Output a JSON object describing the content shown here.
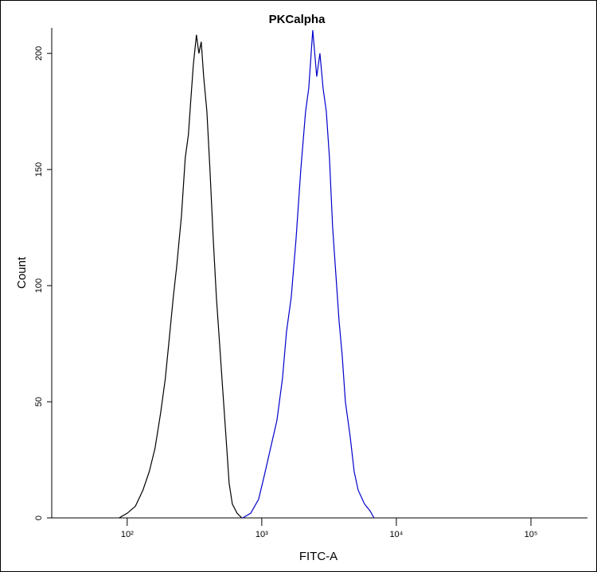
{
  "chart_data": {
    "type": "line",
    "title": "PKCalpha",
    "xlabel": "FITC-A",
    "ylabel": "Count",
    "xscale": "log",
    "xlim": [
      27.5,
      263000
    ],
    "ylim": [
      0,
      211
    ],
    "xticks": [
      {
        "value": 100,
        "label": "10²"
      },
      {
        "value": 1000,
        "label": "10³"
      },
      {
        "value": 10000,
        "label": "10⁴"
      },
      {
        "value": 100000,
        "label": "10⁵"
      }
    ],
    "yticks": [
      0,
      50,
      100,
      150,
      200
    ],
    "series": [
      {
        "color": "#000000",
        "x": [
          87,
          100,
          115,
          131,
          146,
          161,
          177,
          192,
          206,
          220,
          233,
          253,
          270,
          285,
          297,
          310,
          327,
          341,
          355,
          370,
          391,
          412,
          436,
          460,
          486,
          513,
          542,
          572,
          604,
          656,
          711
        ],
        "values": [
          0,
          2,
          5,
          12,
          20,
          30,
          45,
          60,
          78,
          95,
          108,
          130,
          155,
          165,
          180,
          195,
          208,
          200,
          205,
          190,
          175,
          150,
          120,
          95,
          75,
          55,
          35,
          15,
          6,
          2,
          0
        ]
      },
      {
        "color": "#0000cc",
        "x": [
          721,
          827,
          947,
          1042,
          1162,
          1296,
          1425,
          1526,
          1655,
          1797,
          1950,
          2116,
          2234,
          2392,
          2561,
          2704,
          2855,
          3016,
          3184,
          3362,
          3551,
          3750,
          3959,
          4181,
          4538,
          4858,
          5200,
          5799,
          6377,
          6829
        ],
        "values": [
          0,
          2,
          8,
          18,
          30,
          42,
          60,
          80,
          95,
          120,
          150,
          175,
          185,
          210,
          190,
          200,
          185,
          175,
          155,
          125,
          105,
          85,
          70,
          50,
          35,
          20,
          12,
          6,
          3,
          0
        ]
      }
    ]
  }
}
